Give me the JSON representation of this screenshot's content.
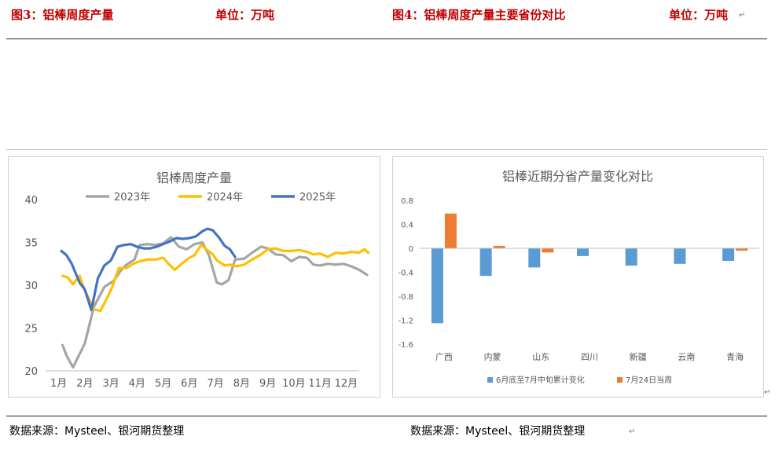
{
  "header": {
    "fig3_title": "图3：铝棒周度产量",
    "fig3_unit": "单位：万吨",
    "fig4_title": "图4：铝棒周度产量主要省份对比",
    "fig4_unit": "单位：万吨"
  },
  "footer": {
    "source_left": "数据来源：Mysteel、银河期货整理",
    "source_right": "数据来源：Mysteel、银河期货整理"
  },
  "chart_data": [
    {
      "type": "line",
      "title": "铝棒周度产量",
      "categories": [
        "1月",
        "2月",
        "3月",
        "4月",
        "5月",
        "6月",
        "7月",
        "8月",
        "9月",
        "10月",
        "11月",
        "12月"
      ],
      "ylim": [
        20,
        40
      ],
      "yticks": [
        20,
        25,
        30,
        35,
        40
      ],
      "grid": false,
      "legend": "top",
      "series": [
        {
          "name": "2023年",
          "color": "#a5a5a5",
          "x": [
            1.15,
            1.3,
            1.55,
            2.0,
            2.35,
            2.75,
            3.1,
            3.4,
            3.6,
            3.9,
            4.1,
            4.4,
            4.7,
            5.0,
            5.3,
            5.6,
            5.9,
            6.2,
            6.5,
            6.75,
            7.05,
            7.25,
            7.5,
            7.75,
            8.1,
            8.4,
            8.75,
            9.0,
            9.3,
            9.6,
            9.9,
            10.2,
            10.5,
            10.75,
            11.0,
            11.3,
            11.6,
            11.9,
            12.2,
            12.5,
            12.8
          ],
          "y": [
            23.0,
            21.8,
            20.4,
            23.2,
            27.5,
            29.8,
            30.5,
            31.8,
            32.4,
            33.0,
            34.7,
            34.8,
            34.7,
            34.9,
            35.6,
            34.5,
            34.2,
            34.8,
            35.0,
            33.5,
            30.3,
            30.1,
            30.6,
            33.0,
            33.1,
            33.8,
            34.5,
            34.3,
            33.6,
            33.5,
            32.8,
            33.3,
            33.2,
            32.4,
            32.3,
            32.5,
            32.4,
            32.5,
            32.2,
            31.8,
            31.2
          ]
        },
        {
          "name": "2024年",
          "color": "#ffc000",
          "x": [
            1.15,
            1.35,
            1.55,
            1.8,
            2.0,
            2.35,
            2.6,
            2.85,
            3.05,
            3.3,
            3.6,
            3.85,
            4.1,
            4.4,
            4.7,
            5.0,
            5.2,
            5.45,
            5.7,
            6.0,
            6.2,
            6.45,
            6.65,
            6.9,
            7.05,
            7.35,
            7.55,
            7.8,
            8.1,
            8.4,
            8.75,
            9.0,
            9.3,
            9.6,
            9.9,
            10.2,
            10.5,
            10.75,
            11.0,
            11.3,
            11.6,
            11.9,
            12.2,
            12.5,
            12.7,
            12.85
          ],
          "y": [
            31.1,
            30.9,
            30.1,
            31.1,
            29.4,
            27.2,
            27.0,
            28.5,
            29.8,
            32.0,
            32.0,
            32.5,
            32.8,
            33.0,
            33.0,
            33.2,
            32.5,
            31.8,
            32.5,
            33.2,
            33.5,
            34.7,
            34.2,
            33.6,
            32.9,
            32.3,
            32.4,
            32.2,
            32.4,
            33.0,
            33.6,
            34.2,
            34.3,
            34.0,
            34.0,
            34.1,
            33.9,
            33.6,
            33.7,
            33.3,
            33.8,
            33.7,
            33.9,
            33.8,
            34.2,
            33.8
          ]
        },
        {
          "name": "2025年",
          "color": "#4472c4",
          "x": [
            1.1,
            1.3,
            1.5,
            1.8,
            2.0,
            2.25,
            2.5,
            2.75,
            3.0,
            3.25,
            3.5,
            3.75,
            4.0,
            4.25,
            4.5,
            4.75,
            5.0,
            5.25,
            5.5,
            5.75,
            6.0,
            6.25,
            6.5,
            6.7,
            6.9,
            7.15,
            7.35,
            7.55,
            7.75
          ],
          "y": [
            34.0,
            33.5,
            32.5,
            30.3,
            29.5,
            27.1,
            30.8,
            32.3,
            32.9,
            34.5,
            34.7,
            34.8,
            34.5,
            34.3,
            34.3,
            34.5,
            34.8,
            35.1,
            35.5,
            35.4,
            35.5,
            35.7,
            36.3,
            36.6,
            36.4,
            35.5,
            34.6,
            34.2,
            33.3
          ]
        }
      ]
    },
    {
      "type": "bar",
      "title": "铝棒近期分省产量变化对比",
      "categories": [
        "广西",
        "内蒙",
        "山东",
        "四川",
        "新疆",
        "云南",
        "青海"
      ],
      "ylim": [
        -1.6,
        0.8
      ],
      "yticks": [
        "0.8",
        "0.4",
        "0",
        "-0.4",
        "-0.8",
        "-1.2",
        "-1.6"
      ],
      "grid": false,
      "legend": "bottom",
      "series": [
        {
          "name": "6月底至7月中旬累计变化",
          "color": "#5b9bd5",
          "values": [
            -1.25,
            -0.46,
            -0.32,
            -0.13,
            -0.29,
            -0.26,
            -0.21
          ]
        },
        {
          "name": "7月24日当周",
          "color": "#ed7d31",
          "values": [
            0.58,
            0.04,
            -0.07,
            0.0,
            0.0,
            0.0,
            -0.04
          ]
        }
      ]
    }
  ]
}
